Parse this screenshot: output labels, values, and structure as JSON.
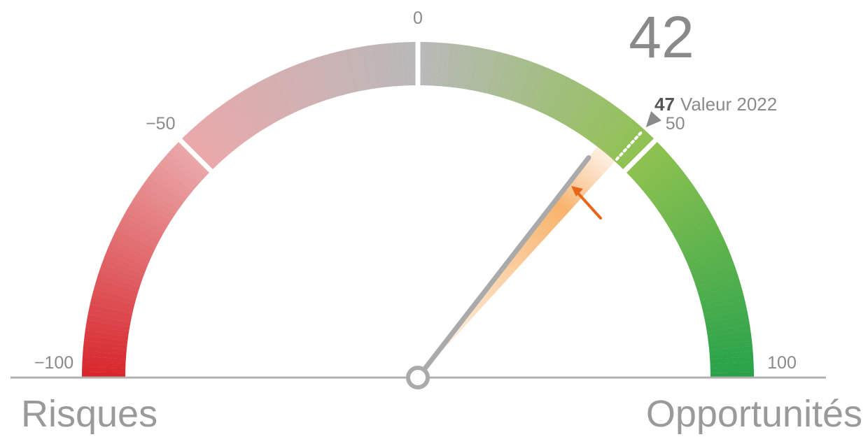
{
  "chart_data": {
    "type": "gauge",
    "value": 42,
    "ylim": [
      -100,
      100
    ],
    "yticks": [
      {
        "value": -100,
        "label": "−100"
      },
      {
        "value": -50,
        "label": "−50"
      },
      0,
      50,
      100
    ],
    "colors": [
      "#d7262b",
      "#eaa8aa",
      "#b9b9b9",
      "#8fc250",
      "#27a24a"
    ],
    "needle_color": "#aaaaaa",
    "previous": {
      "value": 47,
      "label": "Valeur 2022"
    },
    "left_label": "Risques",
    "right_label": "Opportunités"
  }
}
